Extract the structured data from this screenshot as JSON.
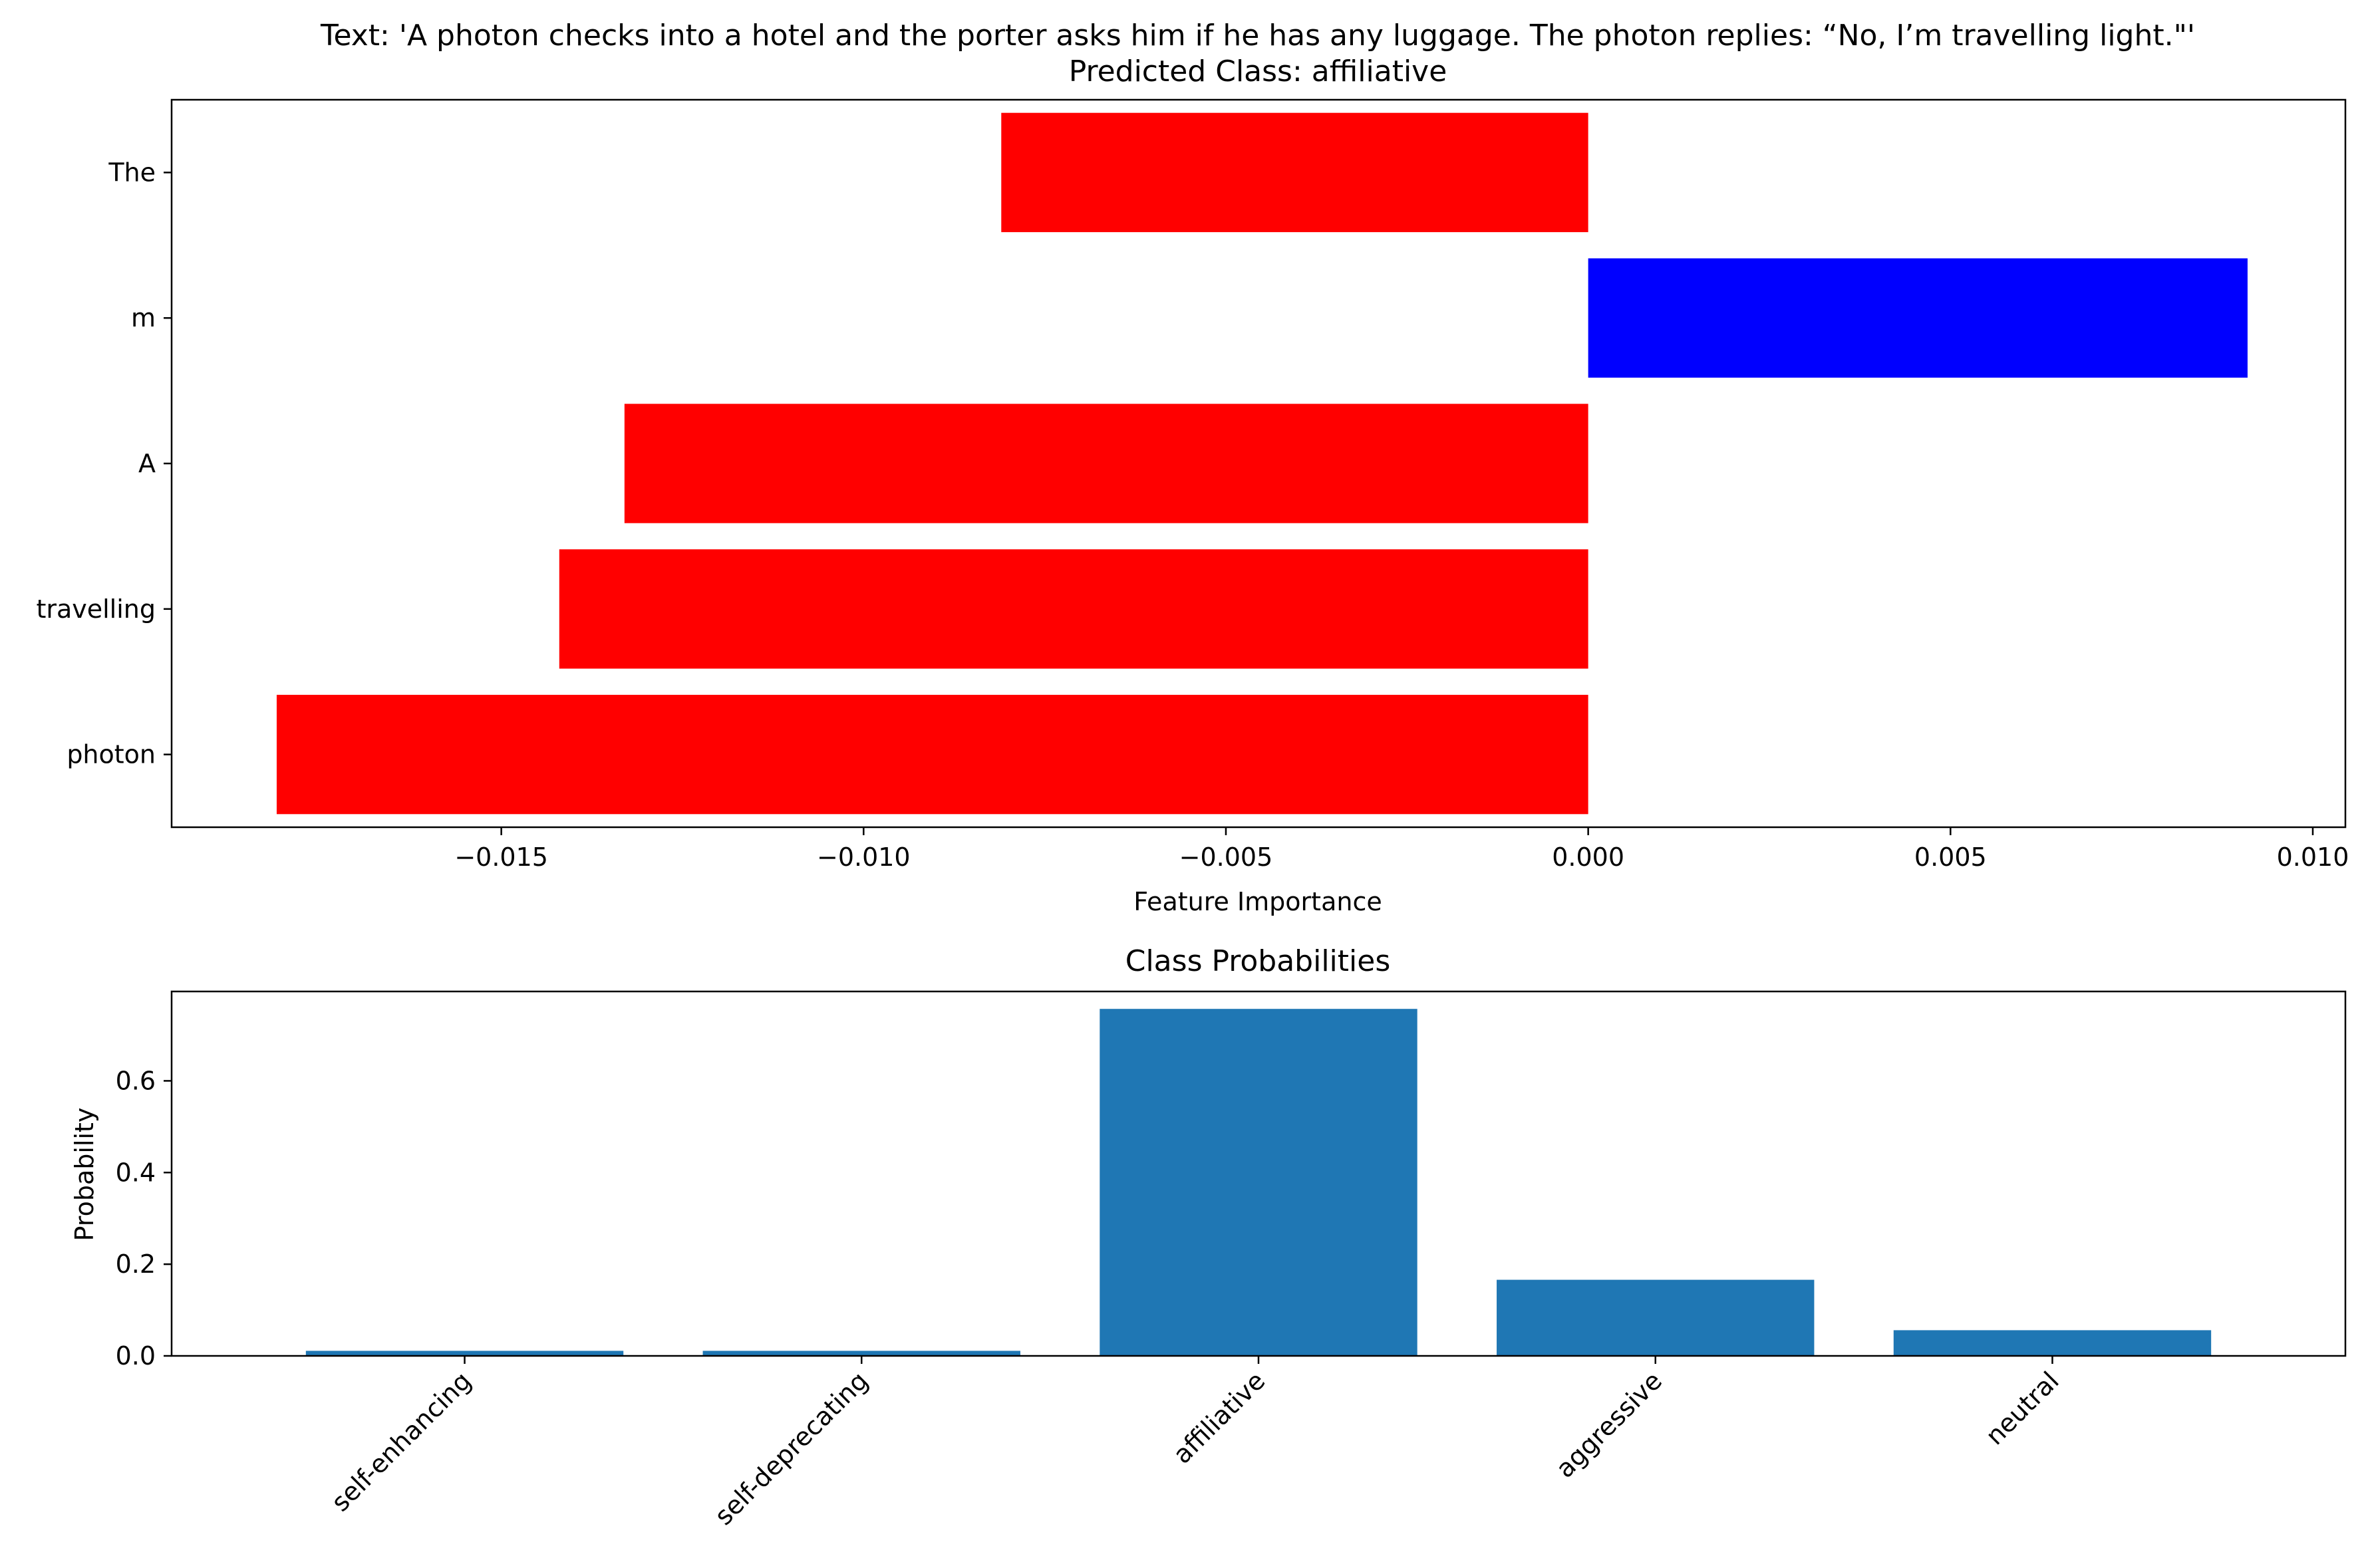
{
  "chart_data": [
    {
      "type": "bar",
      "orientation": "horizontal",
      "title_lines": [
        "Text: 'A photon checks into a hotel and the porter asks him if he has any luggage. The photon replies: “No, I’m travelling light.\"'",
        "Predicted Class: affiliative"
      ],
      "xlabel": "Feature Importance",
      "ylabel": "",
      "categories": [
        "The",
        "m",
        "A",
        "travelling",
        "photon"
      ],
      "values": [
        -0.0081,
        0.0091,
        -0.0133,
        -0.0142,
        -0.0181
      ],
      "bar_colors": [
        "#ff0000",
        "#0000ff",
        "#ff0000",
        "#ff0000",
        "#ff0000"
      ],
      "xlim": [
        -0.01955,
        0.01045
      ],
      "xticks": [
        -0.015,
        -0.01,
        -0.005,
        0.0,
        0.005,
        0.01
      ],
      "xtick_labels": [
        "−0.015",
        "−0.010",
        "−0.005",
        "0.000",
        "0.005",
        "0.010"
      ],
      "positive_color": "#0000ff",
      "negative_color": "#ff0000",
      "grid": false,
      "legend": "none"
    },
    {
      "type": "bar",
      "orientation": "vertical",
      "title": "Class Probabilities",
      "xlabel": "",
      "ylabel": "Probability",
      "categories": [
        "self-enhancing",
        "self-deprecating",
        "affiliative",
        "aggressive",
        "neutral"
      ],
      "values": [
        0.011,
        0.011,
        0.757,
        0.166,
        0.056
      ],
      "ylim": [
        0,
        0.795
      ],
      "yticks": [
        0.0,
        0.2,
        0.4,
        0.6
      ],
      "ytick_labels": [
        "0.0",
        "0.2",
        "0.4",
        "0.6"
      ],
      "bar_color": "#1f77b4",
      "xtick_rotation_deg": 45,
      "grid": false,
      "legend": "none"
    }
  ]
}
